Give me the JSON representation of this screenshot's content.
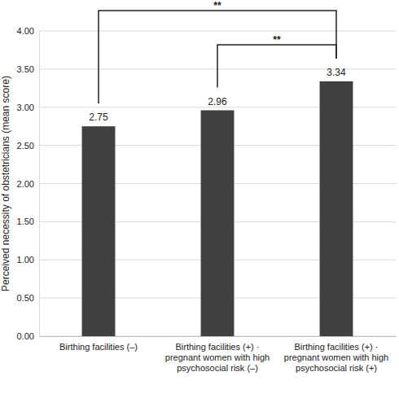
{
  "chart_data": {
    "type": "bar",
    "y_label": "Perceived necessity of obstetricians (mean score)",
    "categories": [
      "Birthing facilities (–)",
      "Birthing facilities (+) · pregnant women with high psychosocial risk (–)",
      "Birthing facilities (+) · pregnant women with high psychosocial risk (+)"
    ],
    "values": [
      2.75,
      2.96,
      3.34
    ],
    "color": "#404040",
    "ylim": [
      0,
      4
    ],
    "yticks": [
      {
        "value": 0,
        "label": "0.00"
      },
      {
        "value": 0.5,
        "label": "0.50"
      },
      {
        "value": 1,
        "label": "1.00"
      },
      {
        "value": 1.5,
        "label": "1.50"
      },
      {
        "value": 2,
        "label": "2.00"
      },
      {
        "value": 2.5,
        "label": "2.50"
      },
      {
        "value": 3,
        "label": "3.00"
      },
      {
        "value": 3.5,
        "label": "3.50"
      },
      {
        "value": 4,
        "label": "4.00"
      }
    ],
    "grid": true,
    "data_labels": true,
    "annotations": [
      {
        "text": "**",
        "from": 0,
        "to": 2
      },
      {
        "text": "**",
        "from": 1,
        "to": 2
      }
    ]
  }
}
